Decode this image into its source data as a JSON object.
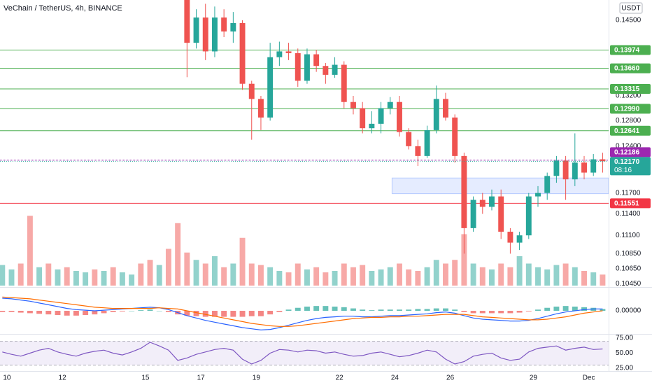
{
  "chart_data": [
    {
      "type": "candlestick",
      "title": "VeChain / TetherUS, 4h, BINANCE",
      "currency": "USDT",
      "log": true,
      "up_color": "#26a69a",
      "down_color": "#ef5350",
      "xlim": [
        -0.25,
        65.65
      ],
      "xticks": [
        {
          "value": 0.5,
          "label": "10"
        },
        {
          "value": 6.5,
          "label": "12"
        },
        {
          "value": 15.5,
          "label": "15"
        },
        {
          "value": 21.5,
          "label": "17"
        },
        {
          "value": 27.5,
          "label": "19"
        },
        {
          "value": 36.5,
          "label": "22"
        },
        {
          "value": 42.5,
          "label": "24"
        },
        {
          "value": 48.5,
          "label": "26"
        },
        {
          "value": 57.5,
          "label": "29"
        },
        {
          "value": 63.5,
          "label": "Dec"
        }
      ],
      "ylim": [
        0.1041,
        0.1487
      ],
      "yticks": [
        {
          "value": 0.145,
          "label": "0.14500"
        },
        {
          "value": 0.132,
          "label": "0.13200"
        },
        {
          "value": 0.128,
          "label": "0.12800"
        },
        {
          "value": 0.124,
          "label": "0.12400"
        },
        {
          "value": 0.117,
          "label": "0.11700"
        },
        {
          "value": 0.114,
          "label": "0.11400"
        },
        {
          "value": 0.111,
          "label": "0.11100"
        },
        {
          "value": 0.1085,
          "label": "0.10850"
        },
        {
          "value": 0.1065,
          "label": "0.10650"
        },
        {
          "value": 0.1045,
          "label": "0.10450"
        }
      ],
      "open": [
        null,
        null,
        null,
        null,
        null,
        null,
        null,
        null,
        null,
        null,
        null,
        null,
        null,
        null,
        null,
        null,
        null,
        null,
        null,
        null,
        0.149,
        0.141,
        0.1455,
        0.1395,
        0.1455,
        0.143,
        0.1445,
        0.134,
        0.1315,
        0.1285,
        0.1385,
        0.1395,
        0.1392,
        0.1345,
        0.139,
        0.137,
        0.1355,
        0.1372,
        0.131,
        0.13,
        0.1268,
        0.1275,
        0.13,
        0.131,
        0.1262,
        0.124,
        0.1225,
        0.1265,
        0.1315,
        0.1285,
        0.1225,
        0.112,
        0.116,
        0.115,
        0.1165,
        0.1115,
        0.11,
        0.111,
        0.1165,
        0.117,
        0.1195,
        0.1218,
        0.119,
        0.1215,
        0.12,
        0.122
      ],
      "high": [
        null,
        null,
        null,
        null,
        null,
        null,
        null,
        null,
        null,
        null,
        null,
        null,
        null,
        null,
        null,
        null,
        null,
        null,
        null,
        null,
        0.15,
        0.147,
        0.148,
        0.1475,
        0.147,
        0.1465,
        0.145,
        0.1345,
        0.132,
        0.141,
        0.1412,
        0.141,
        0.14,
        0.14,
        0.1398,
        0.1375,
        0.1385,
        0.1378,
        0.132,
        0.131,
        0.1295,
        0.131,
        0.1318,
        0.132,
        0.1268,
        0.125,
        0.1272,
        0.1337,
        0.1325,
        0.129,
        0.123,
        0.1165,
        0.117,
        0.1175,
        0.1175,
        0.112,
        0.1115,
        0.117,
        0.118,
        0.12,
        0.1225,
        0.1225,
        0.126,
        0.1225,
        0.1228,
        0.123
      ],
      "low": [
        null,
        null,
        null,
        null,
        null,
        null,
        null,
        null,
        null,
        null,
        null,
        null,
        null,
        null,
        null,
        null,
        null,
        null,
        null,
        null,
        0.1351,
        0.14,
        0.138,
        0.1385,
        0.142,
        0.141,
        0.133,
        0.125,
        0.1265,
        0.128,
        0.137,
        0.138,
        0.1335,
        0.134,
        0.136,
        0.134,
        0.135,
        0.13,
        0.129,
        0.126,
        0.126,
        0.126,
        0.129,
        0.1255,
        0.1235,
        0.121,
        0.1222,
        0.126,
        0.128,
        0.1215,
        0.1085,
        0.1115,
        0.114,
        0.1145,
        0.1105,
        0.1085,
        0.109,
        0.1105,
        0.115,
        0.116,
        0.1185,
        0.116,
        0.118,
        0.119,
        0.1195,
        0.12
      ],
      "close": [
        null,
        null,
        null,
        null,
        null,
        null,
        null,
        null,
        null,
        null,
        null,
        null,
        null,
        null,
        null,
        null,
        null,
        null,
        null,
        null,
        0.141,
        0.1455,
        0.1395,
        0.1455,
        0.143,
        0.1445,
        0.134,
        0.1315,
        0.1285,
        0.1385,
        0.1395,
        0.1392,
        0.1345,
        0.139,
        0.137,
        0.1355,
        0.1372,
        0.131,
        0.13,
        0.1268,
        0.1275,
        0.13,
        0.131,
        0.1262,
        0.124,
        0.1225,
        0.1265,
        0.1315,
        0.1285,
        0.1225,
        0.112,
        0.116,
        0.115,
        0.1165,
        0.1115,
        0.11,
        0.111,
        0.1165,
        0.117,
        0.1195,
        0.1218,
        0.119,
        0.1215,
        0.12,
        0.122,
        0.1217
      ],
      "volume": [
        28,
        22,
        30,
        95,
        25,
        30,
        22,
        25,
        20,
        18,
        22,
        20,
        25,
        18,
        15,
        30,
        35,
        28,
        50,
        85,
        45,
        35,
        30,
        40,
        25,
        30,
        65,
        30,
        28,
        25,
        20,
        18,
        30,
        22,
        25,
        18,
        20,
        30,
        25,
        28,
        20,
        22,
        25,
        30,
        22,
        20,
        25,
        35,
        30,
        35,
        70,
        30,
        25,
        22,
        30,
        25,
        40,
        30,
        25,
        22,
        28,
        30,
        25,
        20,
        18,
        15
      ],
      "levels": [
        {
          "value": 0.13974,
          "label": "0.13974",
          "color": "#4caf50"
        },
        {
          "value": 0.1366,
          "label": "0.13660",
          "color": "#4caf50"
        },
        {
          "value": 0.13315,
          "label": "0.13315",
          "color": "#4caf50"
        },
        {
          "value": 0.1299,
          "label": "0.12990",
          "color": "#4caf50"
        },
        {
          "value": 0.12641,
          "label": "0.12641",
          "color": "#4caf50"
        },
        {
          "value": 0.12186,
          "label": "0.12186",
          "color": "#9c27b0"
        },
        {
          "value": 0.11551,
          "label": "0.11551",
          "color": "#f23645"
        }
      ],
      "last_price": {
        "value": 0.1217,
        "label": "0.12170",
        "countdown": "08:16",
        "color": "#26a69a"
      },
      "zone": {
        "from": 42.2,
        "top": 0.1192,
        "bottom": 0.1169,
        "color": "#2962ff"
      }
    },
    {
      "type": "macd",
      "ylim": [
        -0.0035,
        0.0035
      ],
      "yticks": [
        {
          "value": 0,
          "label": "0.00000"
        }
      ],
      "macd_color": "#2962ff",
      "signal_color": "#ff6d00",
      "macd": [
        0.0021,
        0.002,
        0.0018,
        0.0016,
        0.0013,
        0.001,
        0.0007,
        0.0004,
        0.0002,
        0.0001,
        0,
        0.0001,
        0.0002,
        0.0003,
        0.0004,
        0.0005,
        0.0006,
        0.0005,
        0.0002,
        -0.0003,
        -0.0008,
        -0.0012,
        -0.0016,
        -0.0019,
        -0.0022,
        -0.0025,
        -0.0028,
        -0.003,
        -0.0032,
        -0.0031,
        -0.0028,
        -0.0024,
        -0.002,
        -0.0016,
        -0.0013,
        -0.0011,
        -0.001,
        -0.0009,
        -0.0009,
        -0.001,
        -0.001,
        -0.0009,
        -0.0008,
        -0.0008,
        -0.0007,
        -0.0006,
        -0.0005,
        -0.0003,
        -0.0002,
        -0.0004,
        -0.0008,
        -0.0012,
        -0.0014,
        -0.0015,
        -0.0016,
        -0.0017,
        -0.0017,
        -0.0016,
        -0.0013,
        -0.0009,
        -0.0005,
        -0.0002,
        0,
        0.0002,
        0.0003,
        0.0003
      ],
      "signal": [
        0.0023,
        0.0022,
        0.0021,
        0.002,
        0.0018,
        0.0016,
        0.0014,
        0.0012,
        0.001,
        0.0008,
        0.0006,
        0.0005,
        0.0004,
        0.0004,
        0.0004,
        0.0004,
        0.0004,
        0.0005,
        0.0004,
        0.0003,
        0,
        -0.0003,
        -0.0006,
        -0.0009,
        -0.0012,
        -0.0015,
        -0.0018,
        -0.0021,
        -0.0023,
        -0.0025,
        -0.0026,
        -0.0026,
        -0.0025,
        -0.0023,
        -0.0021,
        -0.0019,
        -0.0017,
        -0.0015,
        -0.0013,
        -0.0012,
        -0.0011,
        -0.0011,
        -0.001,
        -0.001,
        -0.0009,
        -0.0009,
        -0.0008,
        -0.0007,
        -0.0006,
        -0.0006,
        -0.0006,
        -0.0008,
        -0.001,
        -0.0011,
        -0.0012,
        -0.0013,
        -0.0014,
        -0.0015,
        -0.0015,
        -0.0014,
        -0.0012,
        -0.001,
        -0.0007,
        -0.0004,
        -0.0002,
        0
      ],
      "histogram": [
        -0.0002,
        -0.0002,
        -0.0003,
        -0.0004,
        -0.0005,
        -0.0006,
        -0.0007,
        -0.0008,
        -0.0008,
        -0.0007,
        -0.0006,
        -0.0004,
        -0.0002,
        -0.0001,
        0,
        0.0001,
        0.0002,
        0,
        -0.0002,
        -0.0006,
        -0.0008,
        -0.0009,
        -0.001,
        -0.001,
        -0.001,
        -0.001,
        -0.001,
        -0.0009,
        -0.0009,
        -0.0006,
        -0.0002,
        0.0002,
        0.0005,
        0.0007,
        0.0008,
        0.0008,
        0.0007,
        0.0006,
        0.0004,
        0.0002,
        0.0001,
        0.0002,
        0.0002,
        0.0002,
        0.0002,
        0.0003,
        0.0003,
        0.0004,
        0.0004,
        0.0002,
        -0.0002,
        -0.0004,
        -0.0004,
        -0.0004,
        -0.0004,
        -0.0004,
        -0.0003,
        -0.0001,
        0.0002,
        0.0005,
        0.0007,
        0.0008,
        0.0007,
        0.0006,
        0.0005,
        0.0003
      ]
    },
    {
      "type": "rsi",
      "ylim": [
        22.7,
        80.8
      ],
      "band": [
        30,
        70
      ],
      "color": "#7e57c2",
      "yticks": [
        {
          "value": 75,
          "label": "75.00"
        },
        {
          "value": 50,
          "label": "50.00"
        },
        {
          "value": 25,
          "label": "25.00"
        }
      ],
      "values": [
        52,
        48,
        45,
        50,
        55,
        58,
        52,
        48,
        45,
        50,
        53,
        55,
        50,
        47,
        52,
        58,
        68,
        62,
        55,
        38,
        42,
        48,
        52,
        56,
        58,
        55,
        40,
        32,
        38,
        50,
        56,
        55,
        52,
        55,
        54,
        50,
        52,
        48,
        45,
        46,
        50,
        52,
        48,
        44,
        46,
        50,
        55,
        52,
        40,
        32,
        36,
        45,
        48,
        50,
        42,
        38,
        40,
        52,
        58,
        60,
        62,
        55,
        58,
        60,
        56,
        57
      ]
    }
  ]
}
